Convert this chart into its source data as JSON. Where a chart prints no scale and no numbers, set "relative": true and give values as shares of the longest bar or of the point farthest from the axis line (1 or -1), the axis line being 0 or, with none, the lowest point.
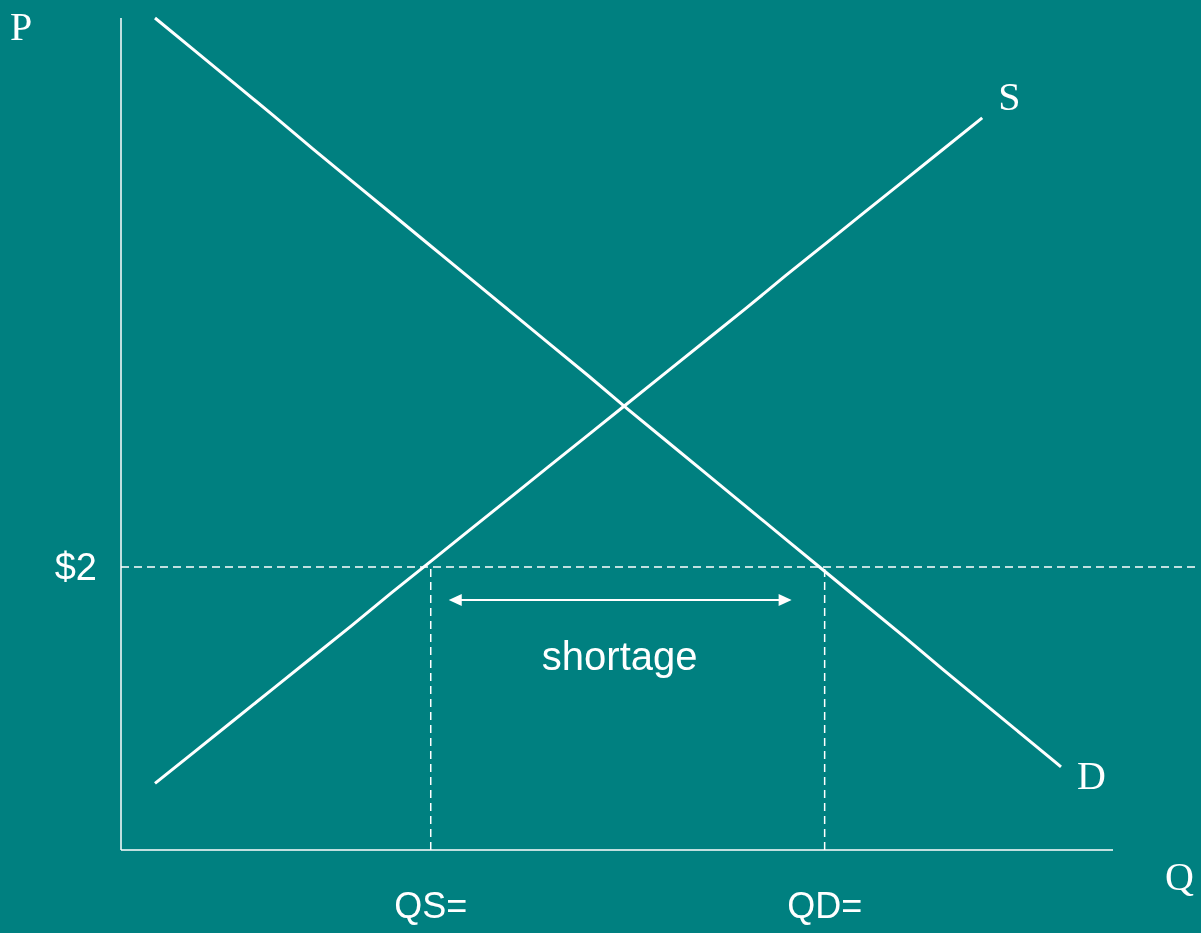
{
  "chart_data": {
    "type": "line",
    "relative": true,
    "xlabel": "Q",
    "ylabel": "P",
    "categories": [
      null,
      null,
      null,
      null,
      null,
      null,
      null,
      "QS=",
      null,
      null,
      null,
      null,
      null,
      null,
      null,
      null,
      null,
      "QD=",
      null,
      null,
      null,
      null,
      null,
      null
    ],
    "series": [
      {
        "name": "D",
        "color": "#ffffff",
        "values": [
          1,
          0.961,
          0.922,
          0.883,
          0.843,
          0.804,
          0.765,
          0.726,
          0.687,
          0.648,
          0.609,
          0.57,
          0.53,
          0.491,
          0.452,
          0.413,
          0.374,
          0.335,
          0.296,
          0.257,
          0.217,
          0.178,
          0.139,
          0.1
        ]
      },
      {
        "name": "S",
        "color": "#ffffff",
        "values": [
          0.08,
          0.118,
          0.156,
          0.194,
          0.232,
          0.27,
          0.309,
          0.347,
          0.385,
          0.423,
          0.461,
          0.499,
          0.537,
          0.575,
          0.613,
          0.651,
          0.69,
          0.728,
          0.766,
          0.804,
          0.842,
          0.88,
          null,
          null
        ]
      }
    ],
    "ref_lines": [
      {
        "axis": "y",
        "value": 0.34,
        "line_style": "dashed",
        "color": "#ffffff"
      },
      {
        "axis": "x",
        "value": "QS=",
        "line_style": "dashed",
        "color": "#ffffff"
      },
      {
        "axis": "x",
        "value": "QD=",
        "line_style": "dashed",
        "color": "#ffffff"
      }
    ],
    "annotations": [
      "$2",
      "shortage"
    ],
    "marker": "none",
    "line_style": "solid",
    "grid": false
  }
}
